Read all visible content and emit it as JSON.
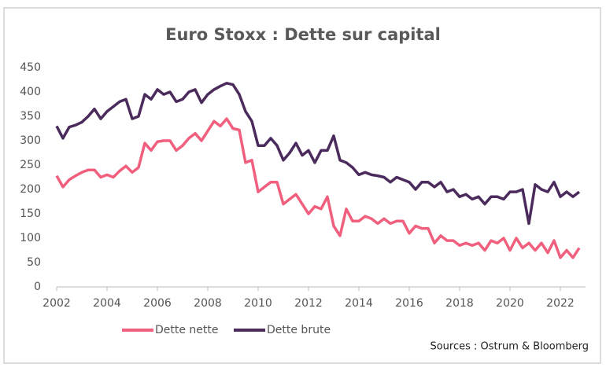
{
  "chart_data": {
    "type": "line",
    "title": "Euro Stoxx : Dette sur capital",
    "source": "Sources : Ostrum &  Bloomberg",
    "x": [
      2002,
      2002.25,
      2002.5,
      2002.75,
      2003,
      2003.25,
      2003.5,
      2003.75,
      2004,
      2004.25,
      2004.5,
      2004.75,
      2005,
      2005.25,
      2005.5,
      2005.75,
      2006,
      2006.25,
      2006.5,
      2006.75,
      2007,
      2007.25,
      2007.5,
      2007.75,
      2008,
      2008.25,
      2008.5,
      2008.75,
      2009,
      2009.25,
      2009.5,
      2009.75,
      2010,
      2010.25,
      2010.5,
      2010.75,
      2011,
      2011.25,
      2011.5,
      2011.75,
      2012,
      2012.25,
      2012.5,
      2012.75,
      2013,
      2013.25,
      2013.5,
      2013.75,
      2014,
      2014.25,
      2014.5,
      2014.75,
      2015,
      2015.25,
      2015.5,
      2015.75,
      2016,
      2016.25,
      2016.5,
      2016.75,
      2017,
      2017.25,
      2017.5,
      2017.75,
      2018,
      2018.25,
      2018.5,
      2018.75,
      2019,
      2019.25,
      2019.5,
      2019.75,
      2020,
      2020.25,
      2020.5,
      2020.75,
      2021,
      2021.25,
      2021.5,
      2021.75,
      2022,
      2022.25,
      2022.5,
      2022.75
    ],
    "series": [
      {
        "name": "Dette nette",
        "color": "#f0607e",
        "values": [
          228,
          205,
          220,
          228,
          235,
          240,
          240,
          225,
          230,
          225,
          238,
          248,
          235,
          245,
          295,
          280,
          298,
          300,
          300,
          280,
          290,
          305,
          315,
          300,
          320,
          340,
          330,
          345,
          325,
          322,
          255,
          260,
          195,
          205,
          215,
          215,
          170,
          180,
          190,
          170,
          150,
          165,
          160,
          185,
          125,
          105,
          160,
          135,
          135,
          145,
          140,
          130,
          140,
          130,
          135,
          135,
          110,
          125,
          120,
          120,
          90,
          105,
          95,
          95,
          85,
          90,
          85,
          90,
          75,
          95,
          90,
          100,
          75,
          100,
          80,
          90,
          75,
          90,
          70,
          95,
          60,
          75,
          60,
          80
        ]
      },
      {
        "name": "Dette brute",
        "color": "#4b2a5c",
        "values": [
          330,
          305,
          328,
          332,
          338,
          350,
          365,
          345,
          360,
          370,
          380,
          385,
          345,
          350,
          395,
          385,
          405,
          395,
          400,
          380,
          385,
          400,
          405,
          378,
          395,
          405,
          412,
          418,
          415,
          395,
          360,
          340,
          290,
          290,
          305,
          290,
          260,
          275,
          295,
          270,
          280,
          255,
          280,
          280,
          310,
          260,
          255,
          245,
          230,
          235,
          230,
          228,
          225,
          215,
          225,
          220,
          215,
          200,
          215,
          215,
          205,
          215,
          195,
          200,
          185,
          190,
          180,
          185,
          170,
          185,
          185,
          180,
          195,
          195,
          200,
          130,
          210,
          200,
          195,
          215,
          185,
          195,
          185,
          195
        ]
      }
    ],
    "xlim": [
      2002,
      2023
    ],
    "xticks": [
      2002,
      2004,
      2006,
      2008,
      2010,
      2012,
      2014,
      2016,
      2018,
      2020,
      2022
    ],
    "ylim": [
      0,
      450
    ],
    "yticks": [
      0,
      50,
      100,
      150,
      200,
      250,
      300,
      350,
      400,
      450
    ],
    "grid": false
  }
}
